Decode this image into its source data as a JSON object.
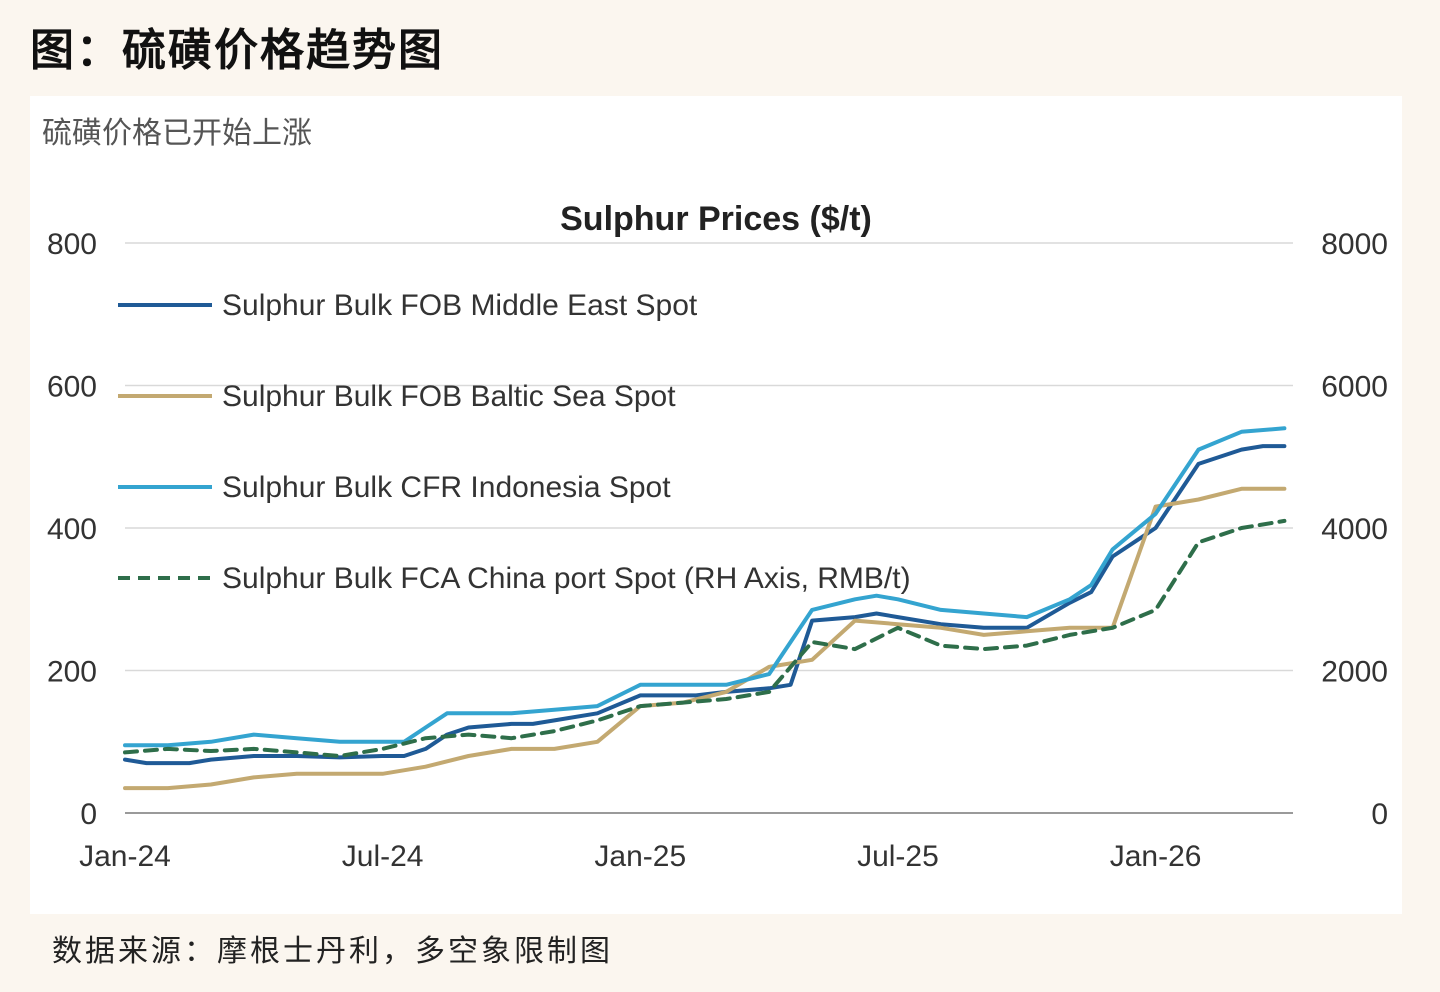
{
  "figure": {
    "title": "图：硫磺价格趋势图",
    "subtitle": "硫磺价格已开始上涨",
    "source": "数据来源：摩根士丹利，多空象限制图"
  },
  "chart_data": {
    "type": "line",
    "title": "Sulphur Prices ($/t)",
    "x_ticks": [
      "Jan-24",
      "Jul-24",
      "Jan-25",
      "Jul-25",
      "Jan-26"
    ],
    "y_left": {
      "range": [
        0,
        800
      ],
      "ticks": [
        "0",
        "200",
        "400",
        "600",
        "800"
      ]
    },
    "y_right": {
      "range": [
        0,
        8000
      ],
      "ticks": [
        "0",
        "2000",
        "4000",
        "6000",
        "8000"
      ]
    },
    "grid": true,
    "legend_position": "top-left",
    "series": [
      {
        "name": "Sulphur Bulk FOB Middle East Spot",
        "color": "#1f5a96",
        "dash": false,
        "axis": "left",
        "x": [
          0,
          0.5,
          1.5,
          2,
          3,
          4,
          5,
          6,
          6.5,
          7,
          7.5,
          8,
          9,
          9.5,
          10,
          11,
          12,
          13,
          13.3,
          14,
          15,
          15.5,
          16,
          17,
          17.5,
          18,
          19,
          20,
          21,
          22,
          22.5,
          23,
          24,
          25,
          26,
          26.5,
          27
        ],
        "y": [
          75,
          70,
          70,
          75,
          80,
          80,
          78,
          80,
          80,
          90,
          110,
          120,
          125,
          125,
          130,
          140,
          165,
          165,
          165,
          170,
          175,
          180,
          270,
          275,
          280,
          275,
          265,
          260,
          260,
          295,
          310,
          360,
          400,
          490,
          510,
          515,
          515
        ]
      },
      {
        "name": "Sulphur Bulk FOB Baltic Sea Spot",
        "color": "#c3a971",
        "dash": false,
        "axis": "left",
        "x": [
          0,
          1,
          2,
          3,
          4,
          5,
          6,
          7,
          8,
          9,
          10,
          11,
          12,
          13,
          14,
          15,
          16,
          17,
          18,
          19,
          20,
          21,
          22,
          23,
          24,
          25,
          26,
          27
        ],
        "y": [
          35,
          35,
          40,
          50,
          55,
          55,
          55,
          65,
          80,
          90,
          90,
          100,
          150,
          155,
          170,
          205,
          215,
          270,
          265,
          260,
          250,
          255,
          260,
          260,
          430,
          440,
          455,
          455
        ]
      },
      {
        "name": "Sulphur Bulk CFR Indonesia Spot",
        "color": "#34a4d0",
        "dash": false,
        "axis": "left",
        "x": [
          0,
          1,
          2,
          3,
          4,
          5,
          6,
          6.5,
          7,
          7.5,
          8,
          9,
          10,
          11,
          12,
          13,
          14,
          15,
          16,
          17,
          17.5,
          18,
          19,
          20,
          21,
          22,
          22.5,
          23,
          24,
          25,
          26,
          27
        ],
        "y": [
          95,
          95,
          100,
          110,
          105,
          100,
          100,
          100,
          120,
          140,
          140,
          140,
          145,
          150,
          180,
          180,
          180,
          195,
          285,
          300,
          305,
          300,
          285,
          280,
          275,
          300,
          320,
          370,
          420,
          510,
          535,
          540
        ]
      },
      {
        "name": "Sulphur Bulk FCA China port Spot (RH Axis, RMB/t)",
        "color": "#2e6e4a",
        "dash": true,
        "axis": "right",
        "x": [
          0,
          1,
          2,
          3,
          4,
          5,
          6,
          7,
          8,
          9,
          10,
          11,
          12,
          13,
          14,
          15,
          16,
          17,
          18,
          19,
          20,
          21,
          22,
          23,
          24,
          25,
          26,
          27
        ],
        "y": [
          850,
          900,
          870,
          900,
          850,
          800,
          900,
          1050,
          1100,
          1050,
          1150,
          1300,
          1500,
          1550,
          1600,
          1700,
          2400,
          2300,
          2600,
          2350,
          2300,
          2350,
          2500,
          2600,
          2850,
          3800,
          4000,
          4100
        ]
      }
    ]
  }
}
